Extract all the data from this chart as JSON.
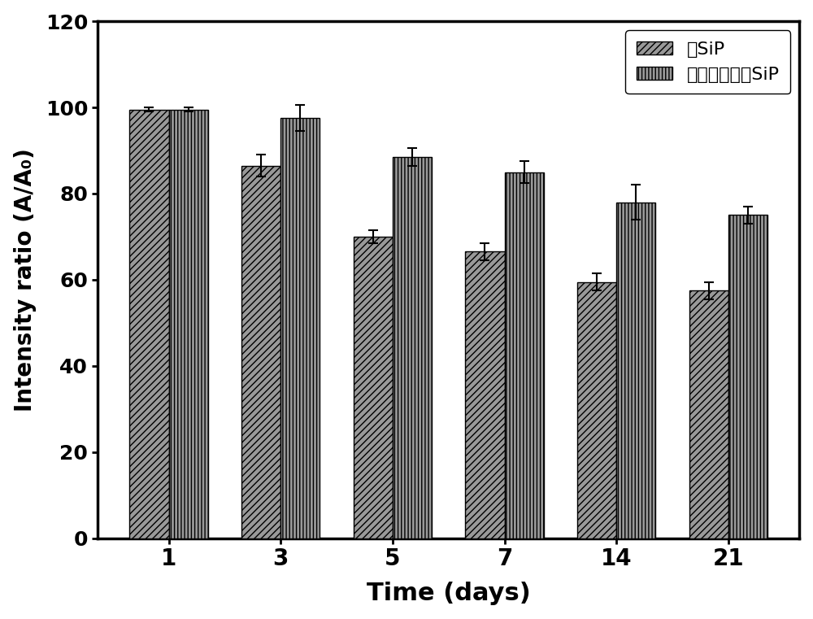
{
  "categories": [
    1,
    3,
    5,
    7,
    14,
    21
  ],
  "sip_values": [
    99.5,
    86.5,
    70.0,
    66.5,
    59.5,
    57.5
  ],
  "sip_errors": [
    0.5,
    2.5,
    1.5,
    2.0,
    2.0,
    2.0
  ],
  "organic_sip_values": [
    99.5,
    97.5,
    88.5,
    85.0,
    78.0,
    75.0
  ],
  "organic_sip_errors": [
    0.5,
    3.0,
    2.0,
    2.5,
    4.0,
    2.0
  ],
  "bar_color": "#999999",
  "bar_edge_color": "#000000",
  "ylabel": "Intensity ratio (A/A₀)",
  "xlabel": "Time (days)",
  "ylim": [
    0,
    120
  ],
  "yticks": [
    0,
    20,
    40,
    60,
    80,
    100,
    120
  ],
  "legend_label1": "纯SiP",
  "legend_label2": "有机物修饰的SiP",
  "bar_width": 0.35,
  "figsize": [
    10.0,
    7.61
  ],
  "dpi": 100
}
